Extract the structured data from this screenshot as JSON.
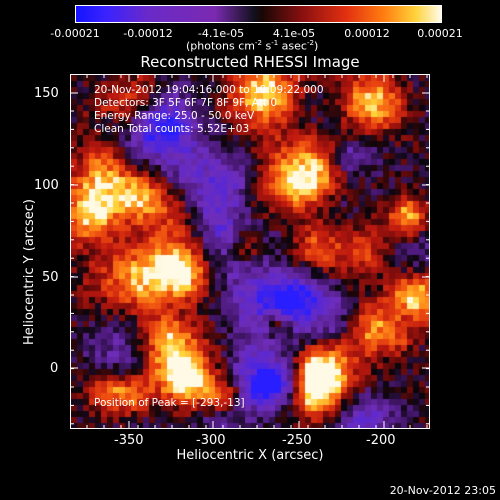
{
  "colorbar": {
    "ticks": [
      "-0.00021",
      "-0.00012",
      "-4.1e-05",
      "4.1e-05",
      "0.00012",
      "0.00021"
    ],
    "units_main": "(photons cm",
    "units_exp1": "-2",
    "units_mid": " s",
    "units_exp2": "-1",
    "units_mid2": " asec",
    "units_exp3": "-2",
    "units_end": ")"
  },
  "chart_data": {
    "type": "heatmap",
    "title": "Reconstructed RHESSI Image",
    "xlabel": "Heliocentric X (arcsec)",
    "ylabel": "Heliocentric Y (arcsec)",
    "xlim": [
      -378,
      -183
    ],
    "ylim": [
      -25,
      165
    ],
    "xticks": [
      "-350",
      "-300",
      "-250",
      "-200"
    ],
    "yticks": [
      "0",
      "50",
      "100",
      "150"
    ],
    "colorscale_range": [
      -0.00021,
      0.00021
    ],
    "peak": [
      -293,
      -13
    ],
    "annotations": [
      "20-Nov-2012 19:04:16.000 to 19:09:22.000",
      "Detectors: 3F 5F 6F 7F 8F 9F, Att 0",
      "Energy Range: 25.0 - 50.0 keV",
      "Clean    Total counts: 5.52E+03"
    ],
    "peak_label": "Position of Peak = [-293,-13]",
    "grid": false,
    "colors": {
      "negative": "#6b2ab8",
      "zero": "#000000",
      "positive_mid": "#e23010",
      "positive_high": "#ffd23a"
    }
  },
  "footer_timestamp": "20-Nov-2012 23:05"
}
